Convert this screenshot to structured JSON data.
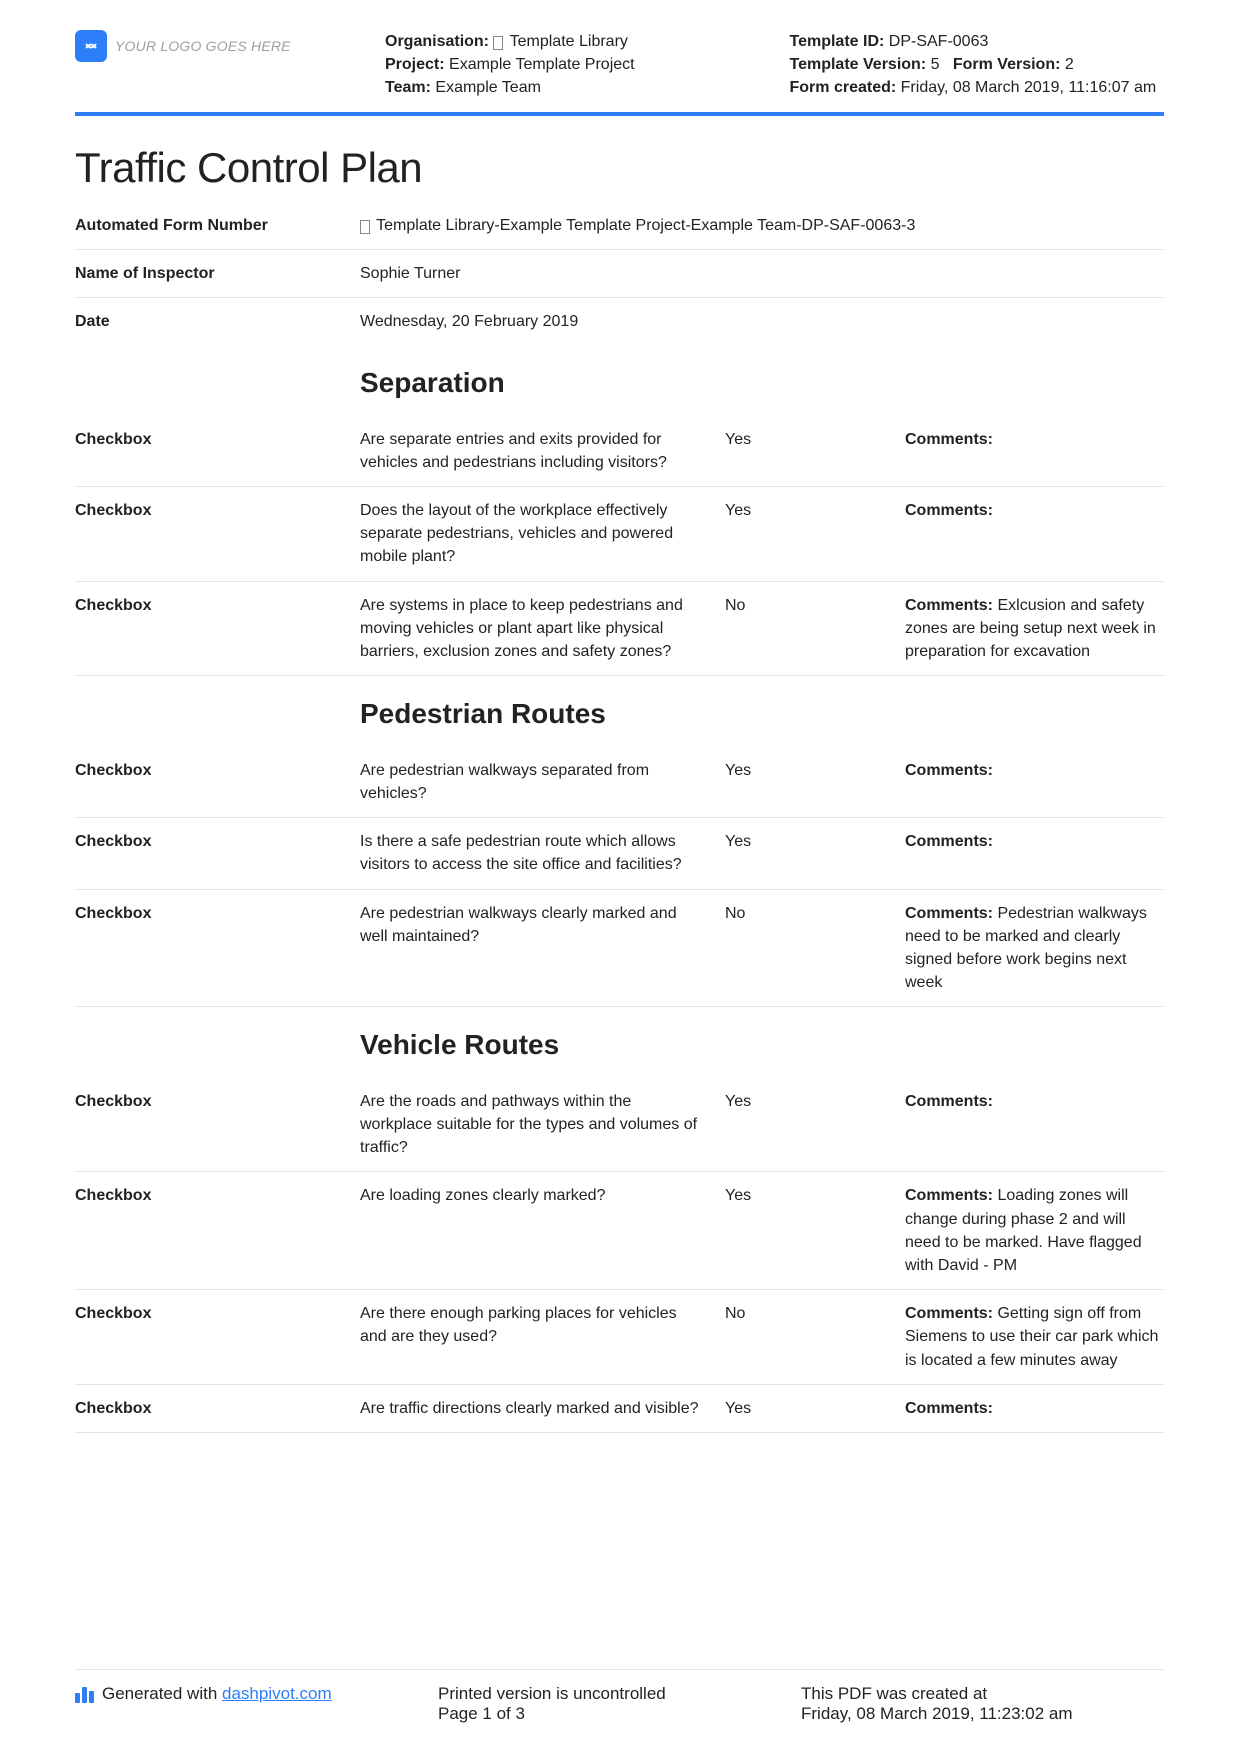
{
  "header": {
    "logo_text": "YOUR LOGO GOES HERE",
    "org_label": "Organisation:",
    "org_value": "Template Library",
    "project_label": "Project:",
    "project_value": "Example Template Project",
    "team_label": "Team:",
    "team_value": "Example Team",
    "tid_label": "Template ID:",
    "tid_value": "DP-SAF-0063",
    "tver_label": "Template Version:",
    "tver_value": "5",
    "fver_label": "Form Version:",
    "fver_value": "2",
    "fcreated_label": "Form created:",
    "fcreated_value": "Friday, 08 March 2019, 11:16:07 am"
  },
  "title": "Traffic Control Plan",
  "meta_rows": [
    {
      "label": "Automated Form Number",
      "value": "Template Library-Example Template Project-Example Team-DP-SAF-0063-3",
      "glyph": true
    },
    {
      "label": "Name of Inspector",
      "value": "Sophie Turner"
    },
    {
      "label": "Date",
      "value": "Wednesday, 20 February 2019"
    }
  ],
  "sections": [
    {
      "title": "Separation",
      "rows": [
        {
          "label": "Checkbox",
          "q": "Are separate entries and exits provided for vehicles and pedestrians including visitors?",
          "a": "Yes",
          "c": ""
        },
        {
          "label": "Checkbox",
          "q": "Does the layout of the workplace effectively separate pedestrians, vehicles and powered mobile plant?",
          "a": "Yes",
          "c": ""
        },
        {
          "label": "Checkbox",
          "q": "Are systems in place to keep pedestrians and moving vehicles or plant apart like physical barriers, exclusion zones and safety zones?",
          "a": "No",
          "c": "Exlcusion and safety zones are being setup next week in preparation for excavation"
        }
      ]
    },
    {
      "title": "Pedestrian Routes",
      "rows": [
        {
          "label": "Checkbox",
          "q": "Are pedestrian walkways separated from vehicles?",
          "a": "Yes",
          "c": ""
        },
        {
          "label": "Checkbox",
          "q": "Is there a safe pedestrian route which allows visitors to access the site office and facilities?",
          "a": "Yes",
          "c": ""
        },
        {
          "label": "Checkbox",
          "q": "Are pedestrian walkways clearly marked and well maintained?",
          "a": "No",
          "c": "Pedestrian walkways need to be marked and clearly signed before work begins next week"
        }
      ]
    },
    {
      "title": "Vehicle Routes",
      "rows": [
        {
          "label": "Checkbox",
          "q": "Are the roads and pathways within the workplace suitable for the types and volumes of traffic?",
          "a": "Yes",
          "c": ""
        },
        {
          "label": "Checkbox",
          "q": "Are loading zones clearly marked?",
          "a": "Yes",
          "c": "Loading zones will change during phase 2 and will need to be marked. Have flagged with David - PM"
        },
        {
          "label": "Checkbox",
          "q": "Are there enough parking places for vehicles and are they used?",
          "a": "No",
          "c": "Getting sign off from Siemens to use their car park which is located a few minutes away"
        },
        {
          "label": "Checkbox",
          "q": "Are traffic directions clearly marked and visible?",
          "a": "Yes",
          "c": ""
        }
      ]
    }
  ],
  "comments_label": "Comments:",
  "footer": {
    "gen_prefix": "Generated with ",
    "gen_link": "dashpivot.com",
    "uncontrolled": "Printed version is uncontrolled",
    "page": "Page 1 of 3",
    "created_label": "This PDF was created at",
    "created_value": "Friday, 08 March 2019, 11:23:02 am"
  },
  "colors": {
    "accent": "#2d7ff9",
    "border": "#e3e3e3",
    "logo_gray": "#9aa0a6"
  }
}
